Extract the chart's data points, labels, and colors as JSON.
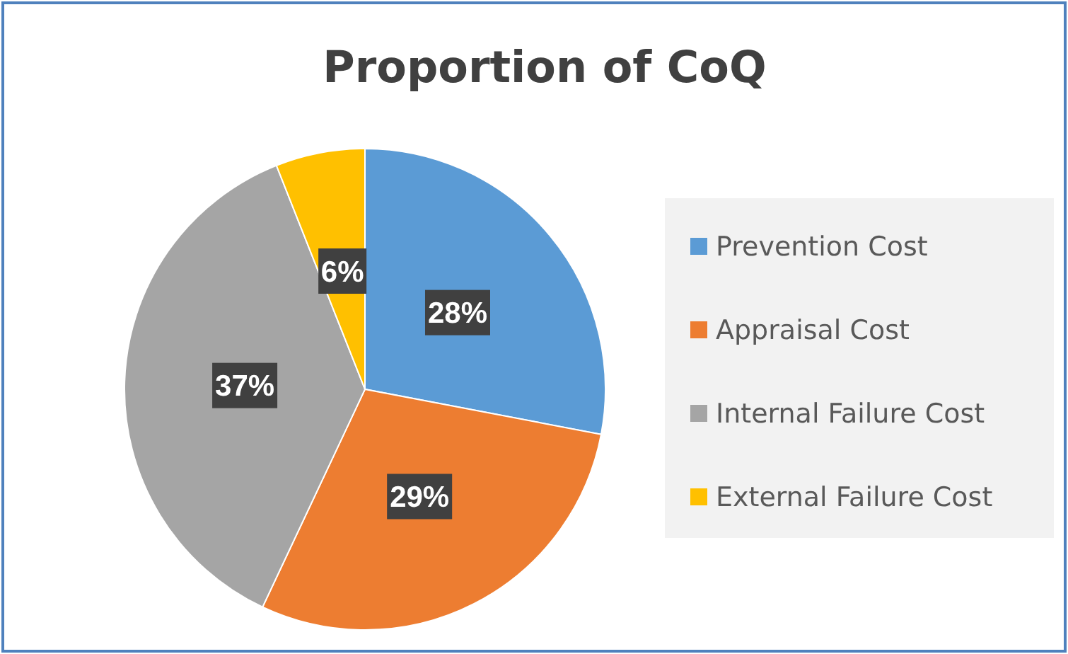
{
  "chart_data": {
    "type": "pie",
    "title": "Proportion of CoQ",
    "categories": [
      "Prevention Cost",
      "Appraisal Cost",
      "Internal Failure Cost",
      "External Failure Cost"
    ],
    "values": [
      28,
      29,
      37,
      6
    ],
    "colors": [
      "#5b9bd5",
      "#ed7d31",
      "#a5a5a5",
      "#ffc000"
    ],
    "value_labels": [
      "28%",
      "29%",
      "37%",
      "6%"
    ],
    "legend": "right"
  }
}
